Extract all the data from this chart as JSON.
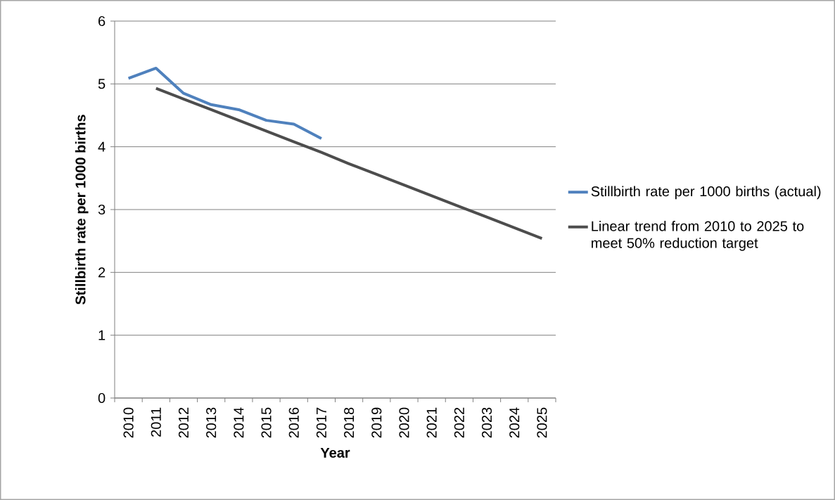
{
  "chart_data": {
    "type": "line",
    "xlabel": "Year",
    "ylabel": "Stillbirth rate per 1000  births",
    "categories": [
      "2010",
      "2011",
      "2012",
      "2013",
      "2014",
      "2015",
      "2016",
      "2017",
      "2018",
      "2019",
      "2020",
      "2021",
      "2022",
      "2023",
      "2024",
      "2025"
    ],
    "series": [
      {
        "name": "Stillbirth rate per 1000 births (actual)",
        "color": "#4f81bd",
        "values": [
          5.09,
          5.25,
          4.85,
          4.67,
          4.59,
          4.42,
          4.36,
          4.13,
          null,
          null,
          null,
          null,
          null,
          null,
          null,
          null
        ]
      },
      {
        "name": "Linear trend from 2010 to 2025 to meet 50% reduction target",
        "color": "#4d4d4d",
        "values": [
          null,
          4.93,
          4.76,
          4.59,
          4.42,
          4.25,
          4.08,
          3.91,
          3.73,
          3.56,
          3.39,
          3.22,
          3.05,
          2.88,
          2.71,
          2.54
        ]
      }
    ],
    "ylim": [
      0,
      6
    ],
    "yticks": [
      0,
      1,
      2,
      3,
      4,
      5,
      6
    ],
    "grid": "y",
    "legend": "right",
    "marker": "none",
    "line_style": "solid"
  }
}
